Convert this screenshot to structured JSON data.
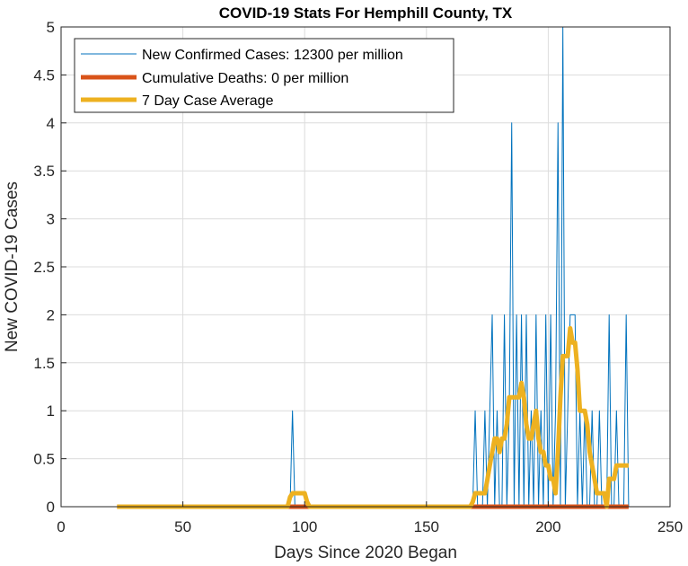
{
  "chart_data": {
    "type": "line",
    "title": "COVID-19 Stats For Hemphill County, TX",
    "xlabel": "Days Since 2020 Began",
    "ylabel": "New COVID-19 Cases",
    "xlim": [
      0,
      250
    ],
    "ylim": [
      0,
      5
    ],
    "xticks": [
      0,
      50,
      100,
      150,
      200,
      250
    ],
    "yticks": [
      0,
      0.5,
      1,
      1.5,
      2,
      2.5,
      3,
      3.5,
      4,
      4.5,
      5
    ],
    "xtick_labels": [
      "0",
      "50",
      "100",
      "150",
      "200",
      "250"
    ],
    "ytick_labels": [
      "0",
      "0.5",
      "1",
      "1.5",
      "2",
      "2.5",
      "3",
      "3.5",
      "4",
      "4.5",
      "5"
    ],
    "grid": true,
    "legend_position": "top-left",
    "series": [
      {
        "name": "New Confirmed Cases: 12300 per million",
        "color": "#0072BD",
        "style": "thin",
        "x": [
          23,
          94,
          95,
          96,
          169,
          170,
          171,
          172,
          173,
          174,
          175,
          176,
          177,
          178,
          179,
          180,
          181,
          182,
          183,
          184,
          185,
          186,
          187,
          188,
          189,
          190,
          191,
          192,
          193,
          194,
          195,
          196,
          197,
          198,
          199,
          200,
          201,
          202,
          203,
          204,
          205,
          206,
          207,
          208,
          209,
          210,
          211,
          212,
          213,
          214,
          215,
          216,
          217,
          218,
          219,
          220,
          221,
          222,
          223,
          224,
          225,
          226,
          227,
          228,
          229,
          230,
          231,
          232,
          233
        ],
        "y": [
          0,
          0,
          1,
          0,
          0,
          1,
          0,
          0,
          0,
          1,
          0,
          1,
          2,
          0,
          1,
          0,
          0,
          2,
          0,
          1,
          4,
          0,
          2,
          0,
          2,
          0,
          2,
          0,
          1,
          0,
          2,
          0,
          1,
          0,
          2,
          0,
          2,
          0,
          1,
          4,
          0,
          5,
          0,
          1,
          2,
          2,
          2,
          0,
          1,
          0,
          1,
          0,
          0,
          1,
          0,
          0,
          1,
          0,
          0,
          0,
          2,
          0,
          0,
          1,
          0,
          0,
          0,
          2,
          0
        ]
      },
      {
        "name": "Cumulative Deaths: 0 per million",
        "color": "#D95319",
        "style": "thick",
        "x": [
          23,
          233
        ],
        "y": [
          0,
          0
        ]
      },
      {
        "name": "7 Day Case Average",
        "color": "#EDB120",
        "style": "thick",
        "x": [
          23,
          93,
          94,
          95,
          96,
          100,
          101,
          102,
          168,
          169,
          170,
          171,
          172,
          173,
          174,
          175,
          176,
          177,
          178,
          179,
          180,
          181,
          182,
          183,
          184,
          185,
          186,
          187,
          188,
          189,
          190,
          191,
          192,
          193,
          194,
          195,
          196,
          197,
          198,
          199,
          200,
          201,
          202,
          203,
          204,
          205,
          206,
          207,
          208,
          209,
          210,
          211,
          212,
          213,
          214,
          215,
          216,
          217,
          218,
          219,
          220,
          221,
          222,
          223,
          224,
          225,
          226,
          227,
          228,
          229,
          230,
          231,
          232,
          233
        ],
        "y": [
          0,
          0,
          0.1,
          0.14,
          0.14,
          0.14,
          0.05,
          0,
          0,
          0.05,
          0.14,
          0.14,
          0.14,
          0.14,
          0.14,
          0.28,
          0.43,
          0.57,
          0.71,
          0.71,
          0.57,
          0.71,
          0.71,
          0.86,
          1.14,
          1.14,
          1.14,
          1.14,
          1.14,
          1.29,
          1.14,
          0.86,
          0.71,
          0.71,
          0.86,
          1.0,
          0.71,
          0.57,
          0.57,
          0.43,
          0.43,
          0.29,
          0.29,
          0.14,
          0.57,
          1.14,
          1.57,
          1.57,
          1.57,
          1.86,
          1.71,
          1.71,
          1.43,
          1.0,
          1.0,
          1.0,
          0.86,
          0.57,
          0.43,
          0.29,
          0.14,
          0.14,
          0.14,
          0.14,
          0.0,
          0.29,
          0.29,
          0.29,
          0.43,
          0.43,
          0.43,
          0.43,
          0.43,
          0.43
        ]
      }
    ]
  }
}
